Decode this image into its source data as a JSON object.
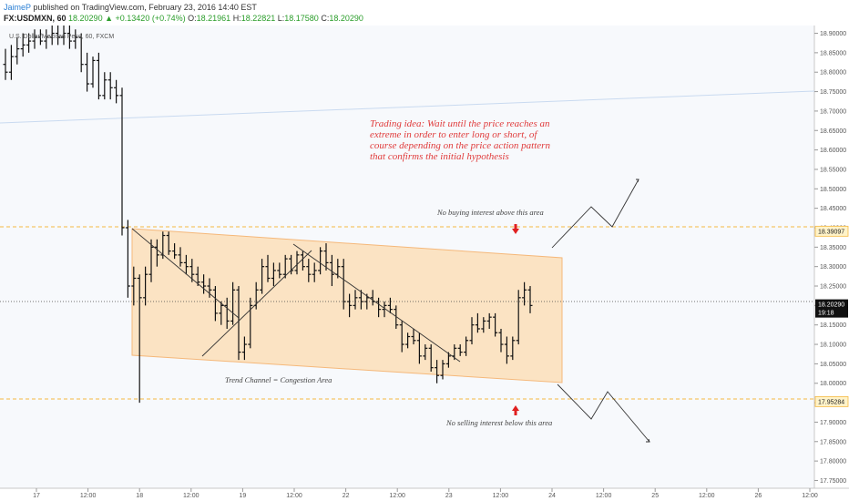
{
  "header": {
    "author": "JaimeP",
    "published_text": "published on TradingView.com, February 23, 2016 14:40 EST",
    "symbol": "FX:USDMXN, 60",
    "price": "18.20290",
    "change": "+0.13420 (+0.74%)",
    "o_label": "O:",
    "o_value": "18.21961",
    "h_label": "H:",
    "h_value": "18.22821",
    "l_label": "L:",
    "l_value": "18.17580",
    "c_label": "C:",
    "c_value": "18.20290"
  },
  "colors": {
    "channel_fill": "#fbe3c3",
    "channel_edge": "#f5b87a",
    "dashed_level": "#f5b942",
    "idea_text": "#e03c3c",
    "arrow_red": "#e02020",
    "label_bg": "#111111",
    "label_highlight": "#fff3c9"
  },
  "chart_data": {
    "type": "ohlc",
    "instrument": "U.S. Dollar/Mexican Peso, 60, FXCM",
    "ylim": [
      17.73,
      18.92
    ],
    "y_ticks": [
      "18.90000",
      "18.85000",
      "18.80000",
      "18.75000",
      "18.70000",
      "18.65000",
      "18.60000",
      "18.55000",
      "18.50000",
      "18.45000",
      "18.40000",
      "18.35000",
      "18.30000",
      "18.25000",
      "18.20000",
      "18.15000",
      "18.10000",
      "18.05000",
      "18.00000",
      "17.95000",
      "17.90000",
      "17.85000",
      "17.80000",
      "17.75000"
    ],
    "x_ticks": [
      "17",
      "12:00",
      "18",
      "12:00",
      "19",
      "12:00",
      "22",
      "12:00",
      "23",
      "12:00",
      "24",
      "12:00",
      "25",
      "12:00",
      "26",
      "12:00"
    ],
    "price_labels": [
      {
        "value": 18.39097,
        "text": "18.39097",
        "style": "highlight"
      },
      {
        "value": 18.2029,
        "text": "18.20290",
        "style": "dark"
      },
      {
        "value": 18.1818,
        "text": "19:18",
        "style": "dark"
      },
      {
        "value": 17.95284,
        "text": "17.95284",
        "style": "highlight"
      }
    ],
    "levels": [
      {
        "value": 18.39097,
        "style": "dashed"
      },
      {
        "value": 17.95284,
        "style": "dashed"
      },
      {
        "value": 18.2029,
        "style": "dotted"
      }
    ],
    "bars": [
      [
        18.82,
        18.86,
        18.78,
        18.8
      ],
      [
        18.8,
        18.87,
        18.78,
        18.84
      ],
      [
        18.84,
        18.89,
        18.82,
        18.86
      ],
      [
        18.86,
        18.9,
        18.84,
        18.87
      ],
      [
        18.87,
        18.9,
        18.85,
        18.88
      ],
      [
        18.88,
        18.91,
        18.86,
        18.89
      ],
      [
        18.89,
        18.91,
        18.87,
        18.88
      ],
      [
        18.88,
        18.91,
        18.86,
        18.89
      ],
      [
        18.89,
        18.92,
        18.87,
        18.9
      ],
      [
        18.9,
        18.92,
        18.87,
        18.89
      ],
      [
        18.89,
        18.92,
        18.87,
        18.9
      ],
      [
        18.9,
        18.92,
        18.86,
        18.88
      ],
      [
        18.88,
        18.91,
        18.86,
        18.89
      ],
      [
        18.89,
        18.9,
        18.8,
        18.82
      ],
      [
        18.82,
        18.85,
        18.75,
        18.77
      ],
      [
        18.77,
        18.84,
        18.76,
        18.83
      ],
      [
        18.83,
        18.85,
        18.73,
        18.74
      ],
      [
        18.74,
        18.8,
        18.73,
        18.78
      ],
      [
        18.78,
        18.8,
        18.73,
        18.76
      ],
      [
        18.76,
        18.78,
        18.72,
        18.74
      ],
      [
        18.74,
        18.76,
        18.38,
        18.4
      ],
      [
        18.4,
        18.42,
        18.22,
        18.25
      ],
      [
        18.25,
        18.3,
        18.2,
        18.27
      ],
      [
        18.27,
        18.28,
        17.95,
        18.22
      ],
      [
        18.22,
        18.3,
        18.2,
        18.28
      ],
      [
        18.28,
        18.37,
        18.26,
        18.35
      ],
      [
        18.35,
        18.37,
        18.3,
        18.33
      ],
      [
        18.33,
        18.39,
        18.32,
        18.38
      ],
      [
        18.38,
        18.39,
        18.33,
        18.34
      ],
      [
        18.34,
        18.36,
        18.32,
        18.33
      ],
      [
        18.33,
        18.35,
        18.3,
        18.31
      ],
      [
        18.31,
        18.33,
        18.28,
        18.3
      ],
      [
        18.3,
        18.32,
        18.26,
        18.28
      ],
      [
        18.28,
        18.3,
        18.25,
        18.26
      ],
      [
        18.26,
        18.28,
        18.23,
        18.25
      ],
      [
        18.25,
        18.27,
        18.22,
        18.24
      ],
      [
        18.24,
        18.25,
        18.16,
        18.18
      ],
      [
        18.18,
        18.21,
        18.15,
        18.2
      ],
      [
        18.2,
        18.22,
        18.14,
        18.16
      ],
      [
        18.16,
        18.26,
        18.15,
        18.24
      ],
      [
        18.24,
        18.25,
        18.06,
        18.08
      ],
      [
        18.08,
        18.12,
        18.06,
        18.1
      ],
      [
        18.1,
        18.22,
        18.09,
        18.2
      ],
      [
        18.2,
        18.26,
        18.19,
        18.24
      ],
      [
        18.24,
        18.32,
        18.23,
        18.3
      ],
      [
        18.3,
        18.33,
        18.26,
        18.27
      ],
      [
        18.27,
        18.31,
        18.25,
        18.29
      ],
      [
        18.29,
        18.31,
        18.27,
        18.28
      ],
      [
        18.28,
        18.33,
        18.27,
        18.32
      ],
      [
        18.32,
        18.33,
        18.28,
        18.29
      ],
      [
        18.29,
        18.34,
        18.28,
        18.33
      ],
      [
        18.33,
        18.34,
        18.29,
        18.3
      ],
      [
        18.3,
        18.32,
        18.26,
        18.28
      ],
      [
        18.28,
        18.31,
        18.26,
        18.29
      ],
      [
        18.29,
        18.35,
        18.28,
        18.34
      ],
      [
        18.34,
        18.36,
        18.29,
        18.31
      ],
      [
        18.31,
        18.33,
        18.25,
        18.28
      ],
      [
        18.28,
        18.32,
        18.27,
        18.3
      ],
      [
        18.3,
        18.32,
        18.19,
        18.21
      ],
      [
        18.21,
        18.23,
        18.17,
        18.2
      ],
      [
        18.2,
        18.24,
        18.19,
        18.22
      ],
      [
        18.22,
        18.24,
        18.19,
        18.21
      ],
      [
        18.21,
        18.23,
        18.19,
        18.22
      ],
      [
        18.22,
        18.24,
        18.2,
        18.21
      ],
      [
        18.21,
        18.22,
        18.17,
        18.19
      ],
      [
        18.19,
        18.21,
        18.17,
        18.2
      ],
      [
        18.2,
        18.22,
        18.18,
        18.19
      ],
      [
        18.19,
        18.2,
        18.14,
        18.15
      ],
      [
        18.15,
        18.16,
        18.08,
        18.1
      ],
      [
        18.1,
        18.13,
        18.09,
        18.12
      ],
      [
        18.12,
        18.14,
        18.1,
        18.11
      ],
      [
        18.11,
        18.13,
        18.05,
        18.07
      ],
      [
        18.07,
        18.1,
        18.06,
        18.09
      ],
      [
        18.09,
        18.1,
        18.03,
        18.04
      ],
      [
        18.04,
        18.06,
        18.0,
        18.02
      ],
      [
        18.02,
        18.06,
        18.01,
        18.05
      ],
      [
        18.05,
        18.08,
        18.04,
        18.07
      ],
      [
        18.07,
        18.1,
        18.06,
        18.09
      ],
      [
        18.09,
        18.1,
        18.07,
        18.08
      ],
      [
        18.08,
        18.12,
        18.07,
        18.11
      ],
      [
        18.11,
        18.17,
        18.1,
        18.15
      ],
      [
        18.15,
        18.18,
        18.13,
        18.14
      ],
      [
        18.14,
        18.17,
        18.13,
        18.16
      ],
      [
        18.16,
        18.18,
        18.14,
        18.17
      ],
      [
        18.17,
        18.18,
        18.12,
        18.13
      ],
      [
        18.13,
        18.14,
        18.08,
        18.1
      ],
      [
        18.1,
        18.12,
        18.05,
        18.07
      ],
      [
        18.07,
        18.12,
        18.06,
        18.11
      ],
      [
        18.11,
        18.24,
        18.1,
        18.22
      ],
      [
        18.22,
        18.26,
        18.2,
        18.24
      ],
      [
        18.24,
        18.25,
        18.18,
        18.2
      ]
    ]
  },
  "annotations": {
    "trading_idea": [
      "Trading idea: Wait until the price reaches an",
      "extreme in order to enter long or short, of",
      "course depending on the price action pattern",
      "that confirms the initial hypothesis"
    ],
    "no_buying": "No buying  interest above this area",
    "no_selling": "No selling interest below this area",
    "channel_label": "Trend Channel = Congestion Area"
  }
}
